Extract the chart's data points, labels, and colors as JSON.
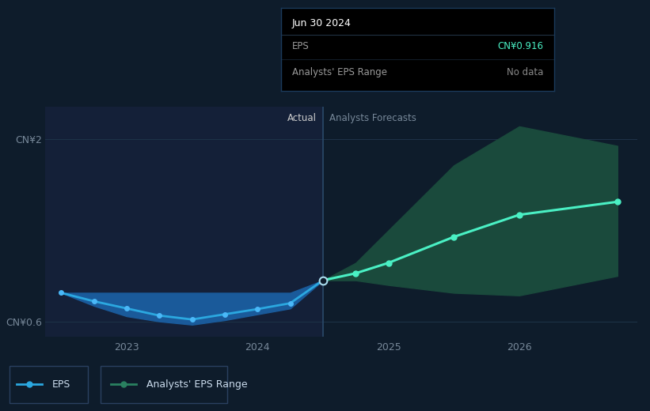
{
  "bg_color": "#0e1c2b",
  "plot_bg_color": "#0e1c2b",
  "grid_color": "#1e3348",
  "divider_color": "#2a4a6a",
  "actual_x": [
    2022.5,
    2022.75,
    2023.0,
    2023.25,
    2023.5,
    2023.75,
    2024.0,
    2024.25,
    2024.5
  ],
  "actual_y": [
    0.82,
    0.755,
    0.7,
    0.645,
    0.615,
    0.655,
    0.695,
    0.74,
    0.916
  ],
  "actual_band_upper": [
    0.82,
    0.82,
    0.82,
    0.82,
    0.82,
    0.82,
    0.82,
    0.82,
    0.916
  ],
  "actual_band_lower": [
    0.82,
    0.72,
    0.64,
    0.6,
    0.575,
    0.61,
    0.655,
    0.7,
    0.916
  ],
  "forecast_x": [
    2024.5,
    2024.75,
    2025.0,
    2025.5,
    2026.0,
    2026.75
  ],
  "forecast_y": [
    0.916,
    0.97,
    1.05,
    1.25,
    1.42,
    1.52
  ],
  "forecast_upper": [
    0.916,
    1.05,
    1.3,
    1.8,
    2.1,
    1.95
  ],
  "forecast_lower": [
    0.916,
    0.916,
    0.88,
    0.82,
    0.8,
    0.95
  ],
  "divider_x": 2024.5,
  "ylim": [
    0.48,
    2.25
  ],
  "xlim": [
    2022.38,
    2026.9
  ],
  "yticks": [
    0.6,
    2.0
  ],
  "ytick_labels": [
    "CN¥0.6",
    "CN¥2"
  ],
  "xticks": [
    2023.0,
    2024.0,
    2025.0,
    2026.0
  ],
  "xtick_labels": [
    "2023",
    "2024",
    "2025",
    "2026"
  ],
  "actual_line_color": "#2ba8e0",
  "actual_band_color": "#1a5a9a",
  "actual_dot_color": "#4ab8f8",
  "forecast_line_color": "#4af0c4",
  "forecast_band_color": "#1a4a3c",
  "forecast_dot_color": "#4af0c4",
  "transition_dot_bg": "#0e1c2b",
  "transition_dot_edge": "#aaddee",
  "label_actual": "Actual",
  "label_forecast": "Analysts Forecasts",
  "tooltip_title": "Jun 30 2024",
  "tooltip_eps_label": "EPS",
  "tooltip_eps_value": "CN¥0.916",
  "tooltip_eps_color": "#4af0c4",
  "tooltip_range_label": "Analysts' EPS Range",
  "tooltip_range_value": "No data",
  "tooltip_range_color": "#888888",
  "legend_eps_label": "EPS",
  "legend_range_label": "Analysts' EPS Range",
  "legend_eps_color": "#2ba8e0",
  "legend_range_color": "#2a8060",
  "left_shade_color": "#142038",
  "right_shade_color": "#0e1c2b"
}
